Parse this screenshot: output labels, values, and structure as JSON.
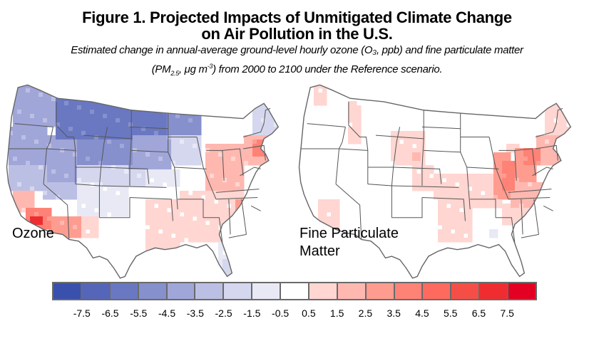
{
  "title_line1": "Figure 1. Projected Impacts of Unmitigated Climate Change",
  "title_line2": "on Air Pollution in the U.S.",
  "subtitle_line1": "Estimated change in annual-average ground-level hourly ozone (O₃, ppb) and fine particulate matter",
  "subtitle_line2_pre": "(PM",
  "subtitle_line2_sub": "2.5",
  "subtitle_line2_mid": ", μg m",
  "subtitle_line2_sup": "-3",
  "subtitle_line2_post": ") from 2000 to 2100 under the Reference scenario.",
  "maps": [
    {
      "id": "ozone",
      "label": "Ozone",
      "pollutant": "O3",
      "unit": "ppb"
    },
    {
      "id": "pm",
      "label": "Fine Particulate Matter",
      "pollutant": "PM2.5",
      "unit": "μg m-3"
    }
  ],
  "legend": {
    "colors": [
      "#3a50ad",
      "#5566b9",
      "#6a78c2",
      "#8590cd",
      "#a0a6d8",
      "#bcbfe4",
      "#d5d7ef",
      "#e8e9f5",
      "#ffffff",
      "#ffd6d1",
      "#ffb8b0",
      "#ff9c90",
      "#ff8276",
      "#ff6a5e",
      "#f54e47",
      "#ef2d30",
      "#e30022"
    ],
    "tick_labels": [
      "-7.5",
      "-6.5",
      "-5.5",
      "-4.5",
      "-3.5",
      "-2.5",
      "-1.5",
      "-0.5",
      "0.5",
      "1.5",
      "2.5",
      "3.5",
      "4.5",
      "5.5",
      "6.5",
      "7.5"
    ]
  },
  "chart_data": [
    {
      "type": "heatmap",
      "title": "Ozone",
      "variable": "Change in annual-average ground-level hourly ozone (ppb), 2000 to 2100, Reference scenario",
      "color_scale_bins": [
        -8.5,
        -7.5,
        -6.5,
        -5.5,
        -4.5,
        -3.5,
        -2.5,
        -1.5,
        -0.5,
        0.5,
        1.5,
        2.5,
        3.5,
        4.5,
        5.5,
        6.5,
        7.5,
        8.5
      ],
      "regions": [
        {
          "region": "Montana / North Dakota (northern plains)",
          "value": -6
        },
        {
          "region": "Washington / Idaho",
          "value": -5
        },
        {
          "region": "Oregon / northern California",
          "value": -4
        },
        {
          "region": "Wyoming / South Dakota / Minnesota",
          "value": -5
        },
        {
          "region": "Nevada / Utah / Colorado / Nebraska",
          "value": -3
        },
        {
          "region": "Iowa / Kansas / Missouri",
          "value": -1
        },
        {
          "region": "New Mexico / Arizona (east)",
          "value": -1
        },
        {
          "region": "Southern California (Los Angeles)",
          "value": 7
        },
        {
          "region": "Southern California (inland)",
          "value": 4
        },
        {
          "region": "Arizona (south)",
          "value": 3
        },
        {
          "region": "Texas / Oklahoma (east)",
          "value": 1
        },
        {
          "region": "Illinois / Indiana / Ohio",
          "value": 2
        },
        {
          "region": "Pennsylvania / New Jersey / New York City",
          "value": 4
        },
        {
          "region": "Georgia / South Carolina",
          "value": 3
        },
        {
          "region": "Southeast (general)",
          "value": 1
        },
        {
          "region": "Maine / northern New England",
          "value": -2
        },
        {
          "region": "South Florida",
          "value": -2
        }
      ]
    },
    {
      "type": "heatmap",
      "title": "Fine Particulate Matter",
      "variable": "Change in annual-average PM2.5 (μg m-3), 2000 to 2100, Reference scenario",
      "color_scale_bins": [
        -8.5,
        -7.5,
        -6.5,
        -5.5,
        -4.5,
        -3.5,
        -2.5,
        -1.5,
        -0.5,
        0.5,
        1.5,
        2.5,
        3.5,
        4.5,
        5.5,
        6.5,
        7.5,
        8.5
      ],
      "regions": [
        {
          "region": "Western states (general)",
          "value": 0
        },
        {
          "region": "Puget Sound / Idaho panhandle",
          "value": 1
        },
        {
          "region": "Wyoming / eastern Colorado",
          "value": 1
        },
        {
          "region": "Southern California coast",
          "value": 1
        },
        {
          "region": "Great Plains (Kansas / Oklahoma / Texas east)",
          "value": 1
        },
        {
          "region": "Illinois / Indiana / Ohio Valley",
          "value": 4
        },
        {
          "region": "Kentucky / Tennessee",
          "value": 3
        },
        {
          "region": "Pennsylvania / New Jersey",
          "value": 3
        },
        {
          "region": "Northeast / New England",
          "value": 1
        },
        {
          "region": "Southeast (Georgia / Alabama / Carolinas)",
          "value": 1
        },
        {
          "region": "Florida / Mississippi",
          "value": 0
        },
        {
          "region": "Southern Louisiana",
          "value": -1
        }
      ]
    }
  ]
}
